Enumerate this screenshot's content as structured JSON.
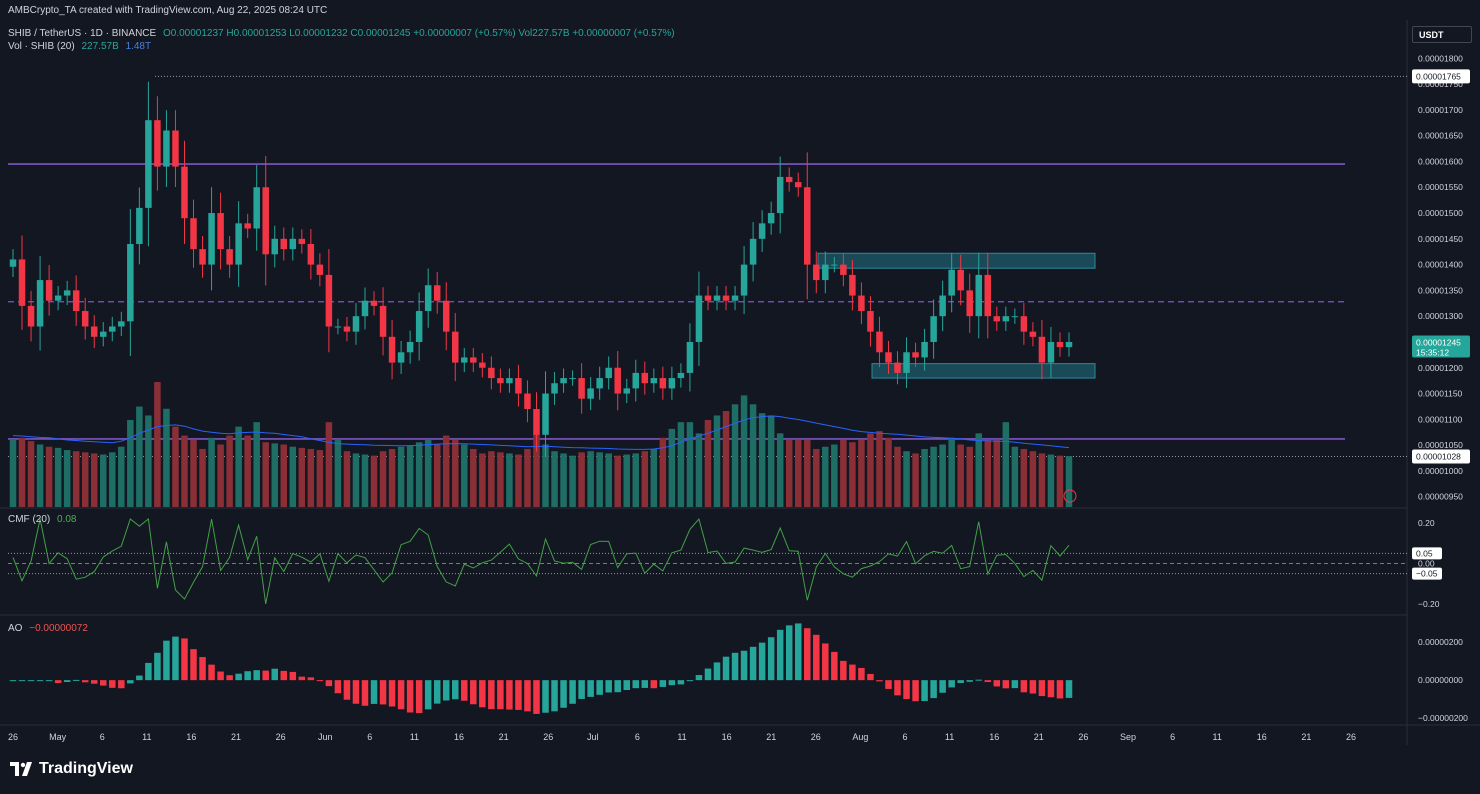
{
  "header": {
    "credit": "AMBCrypto_TA created with TradingView.com, Aug 22, 2025 08:24 UTC",
    "symbol": "SHIB / TetherUS · 1D · BINANCE",
    "ohlc": {
      "o": "O0.00001237",
      "h": "H0.00001253",
      "l": "L0.00001232",
      "c": "C0.00001245",
      "chg": "+0.00000007 (+0.57%)",
      "vol": "Vol227.57B",
      "vol_chg": "+0.00000007 (+0.57%)"
    },
    "vol_legend": {
      "label": "Vol · SHIB (20)",
      "v1": "227.57B",
      "v2": "1.48T"
    },
    "cmf_legend": {
      "label": "CMF (20)",
      "value": "0.08"
    },
    "ao_legend": {
      "label": "AO",
      "value": "−0.00000072"
    }
  },
  "currency_button": "USDT",
  "logo": "TradingView",
  "colors": {
    "bg": "#131722",
    "up": "#26a69a",
    "down": "#f23645",
    "vol_up": "#1f6e66",
    "vol_down": "#8a2f36",
    "resistance": "#7e57c2",
    "zone": "#1e5c6b",
    "ma": "#2962ff"
  },
  "chart_data": [
    {
      "type": "candlestick",
      "symbol": "SHIB/USDT",
      "timeframe": "1D",
      "x_axis_ticks": [
        "26",
        "May",
        "6",
        "11",
        "16",
        "21",
        "26",
        "Jun",
        "6",
        "11",
        "16",
        "21",
        "26",
        "Jul",
        "6",
        "11",
        "16",
        "21",
        "26",
        "Aug",
        "6",
        "11",
        "16",
        "21",
        "26",
        "Sep",
        "6",
        "11",
        "16",
        "21",
        "26"
      ],
      "y_axis_ticks": [
        "0.00001800",
        "0.00001750",
        "0.00001700",
        "0.00001650",
        "0.00001600",
        "0.00001550",
        "0.00001500",
        "0.00001450",
        "0.00001400",
        "0.00001350",
        "0.00001300",
        "0.00001250",
        "0.00001200",
        "0.00001150",
        "0.00001100",
        "0.00001050",
        "0.00001000",
        "0.00000950"
      ],
      "ylim": [
        9.3e-06,
        1.82e-05
      ],
      "price_labels": {
        "high": "0.00001765",
        "last": "0.00001245",
        "countdown": "15:35:12",
        "low": "0.00001028"
      },
      "levels": {
        "resistance": 1.595e-05,
        "support": 1.062e-05,
        "mid_dashed": 1.328e-05,
        "high_dotted": 1.765e-05,
        "low_dotted": 1.028e-05
      },
      "zones": [
        {
          "top": 1.422e-05,
          "bottom": 1.393e-05
        },
        {
          "top": 1.208e-05,
          "bottom": 1.18e-05
        }
      ],
      "closes": [
        1.41e-05,
        1.32e-05,
        1.28e-05,
        1.37e-05,
        1.33e-05,
        1.34e-05,
        1.35e-05,
        1.31e-05,
        1.28e-05,
        1.26e-05,
        1.27e-05,
        1.28e-05,
        1.29e-05,
        1.44e-05,
        1.51e-05,
        1.68e-05,
        1.59e-05,
        1.66e-05,
        1.59e-05,
        1.49e-05,
        1.43e-05,
        1.4e-05,
        1.5e-05,
        1.43e-05,
        1.4e-05,
        1.48e-05,
        1.47e-05,
        1.55e-05,
        1.42e-05,
        1.45e-05,
        1.43e-05,
        1.45e-05,
        1.44e-05,
        1.4e-05,
        1.38e-05,
        1.28e-05,
        1.28e-05,
        1.27e-05,
        1.3e-05,
        1.33e-05,
        1.32e-05,
        1.26e-05,
        1.21e-05,
        1.23e-05,
        1.25e-05,
        1.31e-05,
        1.36e-05,
        1.33e-05,
        1.27e-05,
        1.21e-05,
        1.22e-05,
        1.21e-05,
        1.2e-05,
        1.18e-05,
        1.17e-05,
        1.18e-05,
        1.15e-05,
        1.12e-05,
        1.07e-05,
        1.15e-05,
        1.17e-05,
        1.18e-05,
        1.18e-05,
        1.14e-05,
        1.16e-05,
        1.18e-05,
        1.2e-05,
        1.15e-05,
        1.16e-05,
        1.19e-05,
        1.17e-05,
        1.18e-05,
        1.16e-05,
        1.18e-05,
        1.19e-05,
        1.25e-05,
        1.34e-05,
        1.33e-05,
        1.34e-05,
        1.33e-05,
        1.34e-05,
        1.4e-05,
        1.45e-05,
        1.48e-05,
        1.5e-05,
        1.57e-05,
        1.56e-05,
        1.55e-05,
        1.4e-05,
        1.37e-05,
        1.4e-05,
        1.4e-05,
        1.38e-05,
        1.34e-05,
        1.31e-05,
        1.27e-05,
        1.23e-05,
        1.21e-05,
        1.19e-05,
        1.23e-05,
        1.22e-05,
        1.25e-05,
        1.3e-05,
        1.34e-05,
        1.39e-05,
        1.35e-05,
        1.3e-05,
        1.38e-05,
        1.3e-05,
        1.29e-05,
        1.3e-05,
        1.3e-05,
        1.27e-05,
        1.26e-05,
        1.21e-05,
        1.25e-05,
        1.24e-05,
        1.25e-05
      ]
    },
    {
      "type": "bar",
      "name": "Vol · SHIB (20)",
      "note": "volume histogram with 20-period moving average",
      "values_B": [
        300,
        310,
        295,
        280,
        270,
        265,
        255,
        250,
        245,
        240,
        235,
        245,
        270,
        390,
        450,
        410,
        560,
        440,
        360,
        320,
        300,
        260,
        310,
        280,
        320,
        360,
        320,
        380,
        290,
        285,
        280,
        270,
        265,
        260,
        255,
        380,
        300,
        250,
        240,
        235,
        230,
        250,
        260,
        270,
        275,
        290,
        300,
        280,
        320,
        300,
        280,
        260,
        240,
        250,
        245,
        240,
        235,
        260,
        330,
        280,
        250,
        240,
        230,
        245,
        250,
        245,
        240,
        230,
        235,
        240,
        250,
        260,
        310,
        350,
        380,
        380,
        330,
        390,
        410,
        430,
        460,
        500,
        460,
        420,
        410,
        330,
        300,
        300,
        300,
        260,
        270,
        280,
        300,
        290,
        300,
        330,
        340,
        310,
        270,
        250,
        240,
        260,
        270,
        280,
        310,
        280,
        270,
        330,
        300,
        300,
        380,
        270,
        260,
        250,
        240,
        235,
        230,
        228
      ],
      "ma_B": [
        320,
        318,
        315,
        312,
        310,
        305,
        300,
        298,
        295,
        292,
        290,
        288,
        295,
        310,
        330,
        345,
        360,
        365,
        368,
        362,
        350,
        340,
        335,
        330,
        328,
        332,
        334,
        336,
        332,
        330,
        325,
        320,
        315,
        305,
        298,
        290,
        284,
        282,
        280,
        279,
        277,
        276,
        275,
        274,
        275,
        277,
        280,
        282,
        283,
        284,
        283,
        282,
        280,
        278,
        276,
        274,
        272,
        270,
        271,
        272,
        270,
        268,
        266,
        265,
        264,
        263,
        262,
        260,
        259,
        258,
        258,
        260,
        265,
        275,
        290,
        305,
        318,
        330,
        345,
        360,
        375,
        390,
        400,
        405,
        408,
        405,
        398,
        392,
        384,
        376,
        368,
        360,
        352,
        344,
        338,
        334,
        330,
        328,
        326,
        322,
        318,
        314,
        312,
        310,
        308,
        305,
        300,
        298,
        296,
        295,
        294,
        290,
        286,
        282,
        278,
        274,
        270,
        266
      ]
    },
    {
      "type": "line",
      "name": "CMF (20)",
      "y_axis_ticks": [
        "0.20",
        "0.05",
        "0.00",
        "−0.05",
        "−0.20"
      ],
      "ylim": [
        -0.24,
        0.24
      ],
      "last": 0.08
    },
    {
      "type": "bar",
      "name": "AO",
      "y_axis_ticks": [
        "0.00000200",
        "0.00000000",
        "−0.00000200"
      ],
      "ylim": [
        -2.2e-06,
        2.9e-06
      ],
      "last": -7.2e-07
    }
  ]
}
